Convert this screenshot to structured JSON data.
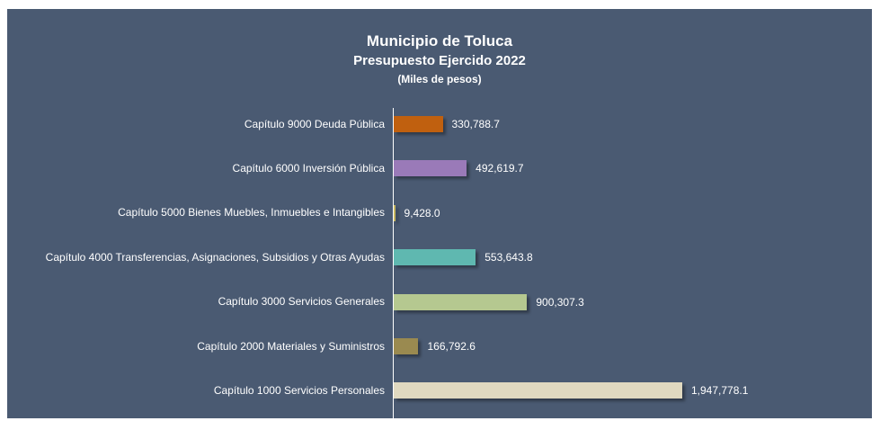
{
  "chart_data": {
    "type": "barh",
    "title": "Municipio de Toluca",
    "subtitle": "Presupuesto Ejercido 2022",
    "unit_label": "(Miles de pesos)",
    "categories": [
      "Capítulo 9000 Deuda Pública",
      "Capítulo 6000 Inversión Pública",
      "Capítulo 5000 Bienes Muebles, Inmuebles e Intangibles",
      "Capítulo 4000 Transferencias, Asignaciones, Subsidios y Otras Ayudas",
      "Capítulo 3000 Servicios Generales",
      "Capítulo 2000 Materiales y Suministros",
      "Capítulo 1000 Servicios Personales"
    ],
    "values": [
      330788.7,
      492619.7,
      9428.0,
      553643.8,
      900307.3,
      166792.6,
      1947778.1
    ],
    "value_labels": [
      "330,788.7",
      "492,619.7",
      "9,428.0",
      "553,643.8",
      "900,307.3",
      "166,792.6",
      "1,947,778.1"
    ],
    "colors": [
      "#c0600f",
      "#9a7ab8",
      "#c8b860",
      "#5fb8b0",
      "#b5c890",
      "#9a8a50",
      "#e0d9c0"
    ]
  }
}
